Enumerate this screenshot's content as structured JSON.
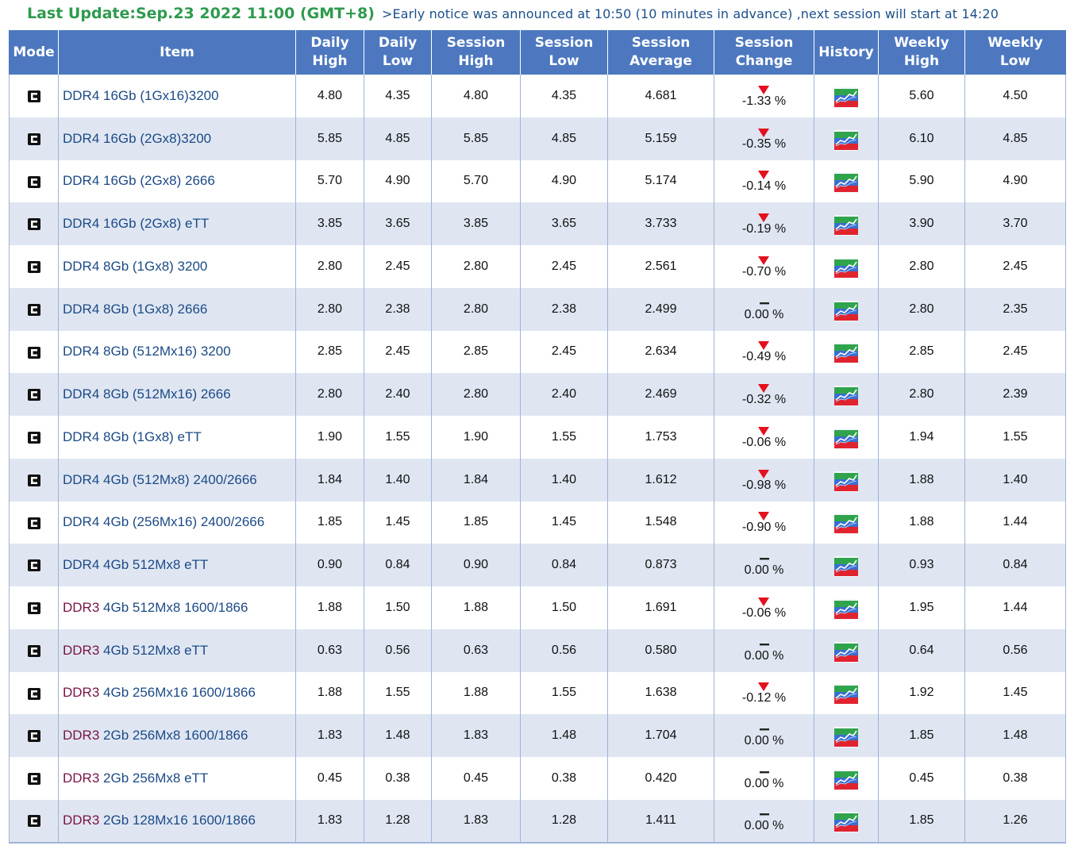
{
  "header": {
    "last_update": "Last Update:Sep.23 2022 11:00 (GMT+8)",
    "notice": ">Early notice was announced at 10:50 (10 minutes in advance) ,next session will start at 14:20"
  },
  "columns": [
    [
      "Mode"
    ],
    [
      "Item"
    ],
    [
      "Daily",
      "High"
    ],
    [
      "Daily",
      "Low"
    ],
    [
      "Session",
      "High"
    ],
    [
      "Session",
      "Low"
    ],
    [
      "Session",
      "Average"
    ],
    [
      "Session",
      "Change"
    ],
    [
      "History"
    ],
    [
      "Weekly",
      "High"
    ],
    [
      "Weekly",
      "Low"
    ]
  ],
  "colors": {
    "header_bg": "#4d78c0",
    "stripe_bg": "#dfe6f2",
    "item_text": "#1c4a86",
    "ddr3_prefix": "#7a1446",
    "down_arrow": "#e3101d",
    "title_green": "#2e9a4e"
  },
  "icons": {
    "mode": "chip-mode-icon",
    "history": "line-chart-history-icon",
    "down": "down-triangle-icon",
    "flat": "dash-icon"
  },
  "rows": [
    {
      "prefix": "DDR4",
      "item": " 16Gb (1Gx16)3200",
      "daily_high": "4.80",
      "daily_low": "4.35",
      "session_high": "4.80",
      "session_low": "4.35",
      "session_avg": "4.681",
      "trend": "down",
      "change": "-1.33 %",
      "weekly_high": "5.60",
      "weekly_low": "4.50"
    },
    {
      "prefix": "DDR4",
      "item": " 16Gb (2Gx8)3200",
      "daily_high": "5.85",
      "daily_low": "4.85",
      "session_high": "5.85",
      "session_low": "4.85",
      "session_avg": "5.159",
      "trend": "down",
      "change": "-0.35 %",
      "weekly_high": "6.10",
      "weekly_low": "4.85"
    },
    {
      "prefix": "DDR4",
      "item": " 16Gb (2Gx8) 2666",
      "daily_high": "5.70",
      "daily_low": "4.90",
      "session_high": "5.70",
      "session_low": "4.90",
      "session_avg": "5.174",
      "trend": "down",
      "change": "-0.14 %",
      "weekly_high": "5.90",
      "weekly_low": "4.90"
    },
    {
      "prefix": "DDR4",
      "item": " 16Gb (2Gx8) eTT",
      "daily_high": "3.85",
      "daily_low": "3.65",
      "session_high": "3.85",
      "session_low": "3.65",
      "session_avg": "3.733",
      "trend": "down",
      "change": "-0.19 %",
      "weekly_high": "3.90",
      "weekly_low": "3.70"
    },
    {
      "prefix": "DDR4",
      "item": " 8Gb (1Gx8) 3200",
      "daily_high": "2.80",
      "daily_low": "2.45",
      "session_high": "2.80",
      "session_low": "2.45",
      "session_avg": "2.561",
      "trend": "down",
      "change": "-0.70 %",
      "weekly_high": "2.80",
      "weekly_low": "2.45"
    },
    {
      "prefix": "DDR4",
      "item": " 8Gb (1Gx8) 2666",
      "daily_high": "2.80",
      "daily_low": "2.38",
      "session_high": "2.80",
      "session_low": "2.38",
      "session_avg": "2.499",
      "trend": "flat",
      "change": "0.00 %",
      "weekly_high": "2.80",
      "weekly_low": "2.35"
    },
    {
      "prefix": "DDR4",
      "item": " 8Gb (512Mx16) 3200",
      "daily_high": "2.85",
      "daily_low": "2.45",
      "session_high": "2.85",
      "session_low": "2.45",
      "session_avg": "2.634",
      "trend": "down",
      "change": "-0.49 %",
      "weekly_high": "2.85",
      "weekly_low": "2.45"
    },
    {
      "prefix": "DDR4",
      "item": " 8Gb (512Mx16) 2666",
      "daily_high": "2.80",
      "daily_low": "2.40",
      "session_high": "2.80",
      "session_low": "2.40",
      "session_avg": "2.469",
      "trend": "down",
      "change": "-0.32 %",
      "weekly_high": "2.80",
      "weekly_low": "2.39"
    },
    {
      "prefix": "DDR4",
      "item": " 8Gb (1Gx8) eTT",
      "daily_high": "1.90",
      "daily_low": "1.55",
      "session_high": "1.90",
      "session_low": "1.55",
      "session_avg": "1.753",
      "trend": "down",
      "change": "-0.06 %",
      "weekly_high": "1.94",
      "weekly_low": "1.55"
    },
    {
      "prefix": "DDR4",
      "item": " 4Gb (512Mx8) 2400/2666",
      "daily_high": "1.84",
      "daily_low": "1.40",
      "session_high": "1.84",
      "session_low": "1.40",
      "session_avg": "1.612",
      "trend": "down",
      "change": "-0.98 %",
      "weekly_high": "1.88",
      "weekly_low": "1.40"
    },
    {
      "prefix": "DDR4",
      "item": " 4Gb (256Mx16) 2400/2666",
      "daily_high": "1.85",
      "daily_low": "1.45",
      "session_high": "1.85",
      "session_low": "1.45",
      "session_avg": "1.548",
      "trend": "down",
      "change": "-0.90 %",
      "weekly_high": "1.88",
      "weekly_low": "1.44"
    },
    {
      "prefix": "DDR4",
      "item": " 4Gb 512Mx8 eTT",
      "daily_high": "0.90",
      "daily_low": "0.84",
      "session_high": "0.90",
      "session_low": "0.84",
      "session_avg": "0.873",
      "trend": "flat",
      "change": "0.00 %",
      "weekly_high": "0.93",
      "weekly_low": "0.84"
    },
    {
      "prefix": "DDR3",
      "item": " 4Gb 512Mx8 1600/1866",
      "daily_high": "1.88",
      "daily_low": "1.50",
      "session_high": "1.88",
      "session_low": "1.50",
      "session_avg": "1.691",
      "trend": "down",
      "change": "-0.06 %",
      "weekly_high": "1.95",
      "weekly_low": "1.44"
    },
    {
      "prefix": "DDR3",
      "item": " 4Gb 512Mx8 eTT",
      "daily_high": "0.63",
      "daily_low": "0.56",
      "session_high": "0.63",
      "session_low": "0.56",
      "session_avg": "0.580",
      "trend": "flat",
      "change": "0.00 %",
      "weekly_high": "0.64",
      "weekly_low": "0.56"
    },
    {
      "prefix": "DDR3",
      "item": " 4Gb 256Mx16 1600/1866",
      "daily_high": "1.88",
      "daily_low": "1.55",
      "session_high": "1.88",
      "session_low": "1.55",
      "session_avg": "1.638",
      "trend": "down",
      "change": "-0.12 %",
      "weekly_high": "1.92",
      "weekly_low": "1.45"
    },
    {
      "prefix": "DDR3",
      "item": " 2Gb 256Mx8 1600/1866",
      "daily_high": "1.83",
      "daily_low": "1.48",
      "session_high": "1.83",
      "session_low": "1.48",
      "session_avg": "1.704",
      "trend": "flat",
      "change": "0.00 %",
      "weekly_high": "1.85",
      "weekly_low": "1.48"
    },
    {
      "prefix": "DDR3",
      "item": " 2Gb 256Mx8 eTT",
      "daily_high": "0.45",
      "daily_low": "0.38",
      "session_high": "0.45",
      "session_low": "0.38",
      "session_avg": "0.420",
      "trend": "flat",
      "change": "0.00 %",
      "weekly_high": "0.45",
      "weekly_low": "0.38"
    },
    {
      "prefix": "DDR3",
      "item": " 2Gb 128Mx16 1600/1866",
      "daily_high": "1.83",
      "daily_low": "1.28",
      "session_high": "1.83",
      "session_low": "1.28",
      "session_avg": "1.411",
      "trend": "flat",
      "change": "0.00 %",
      "weekly_high": "1.85",
      "weekly_low": "1.26"
    }
  ]
}
